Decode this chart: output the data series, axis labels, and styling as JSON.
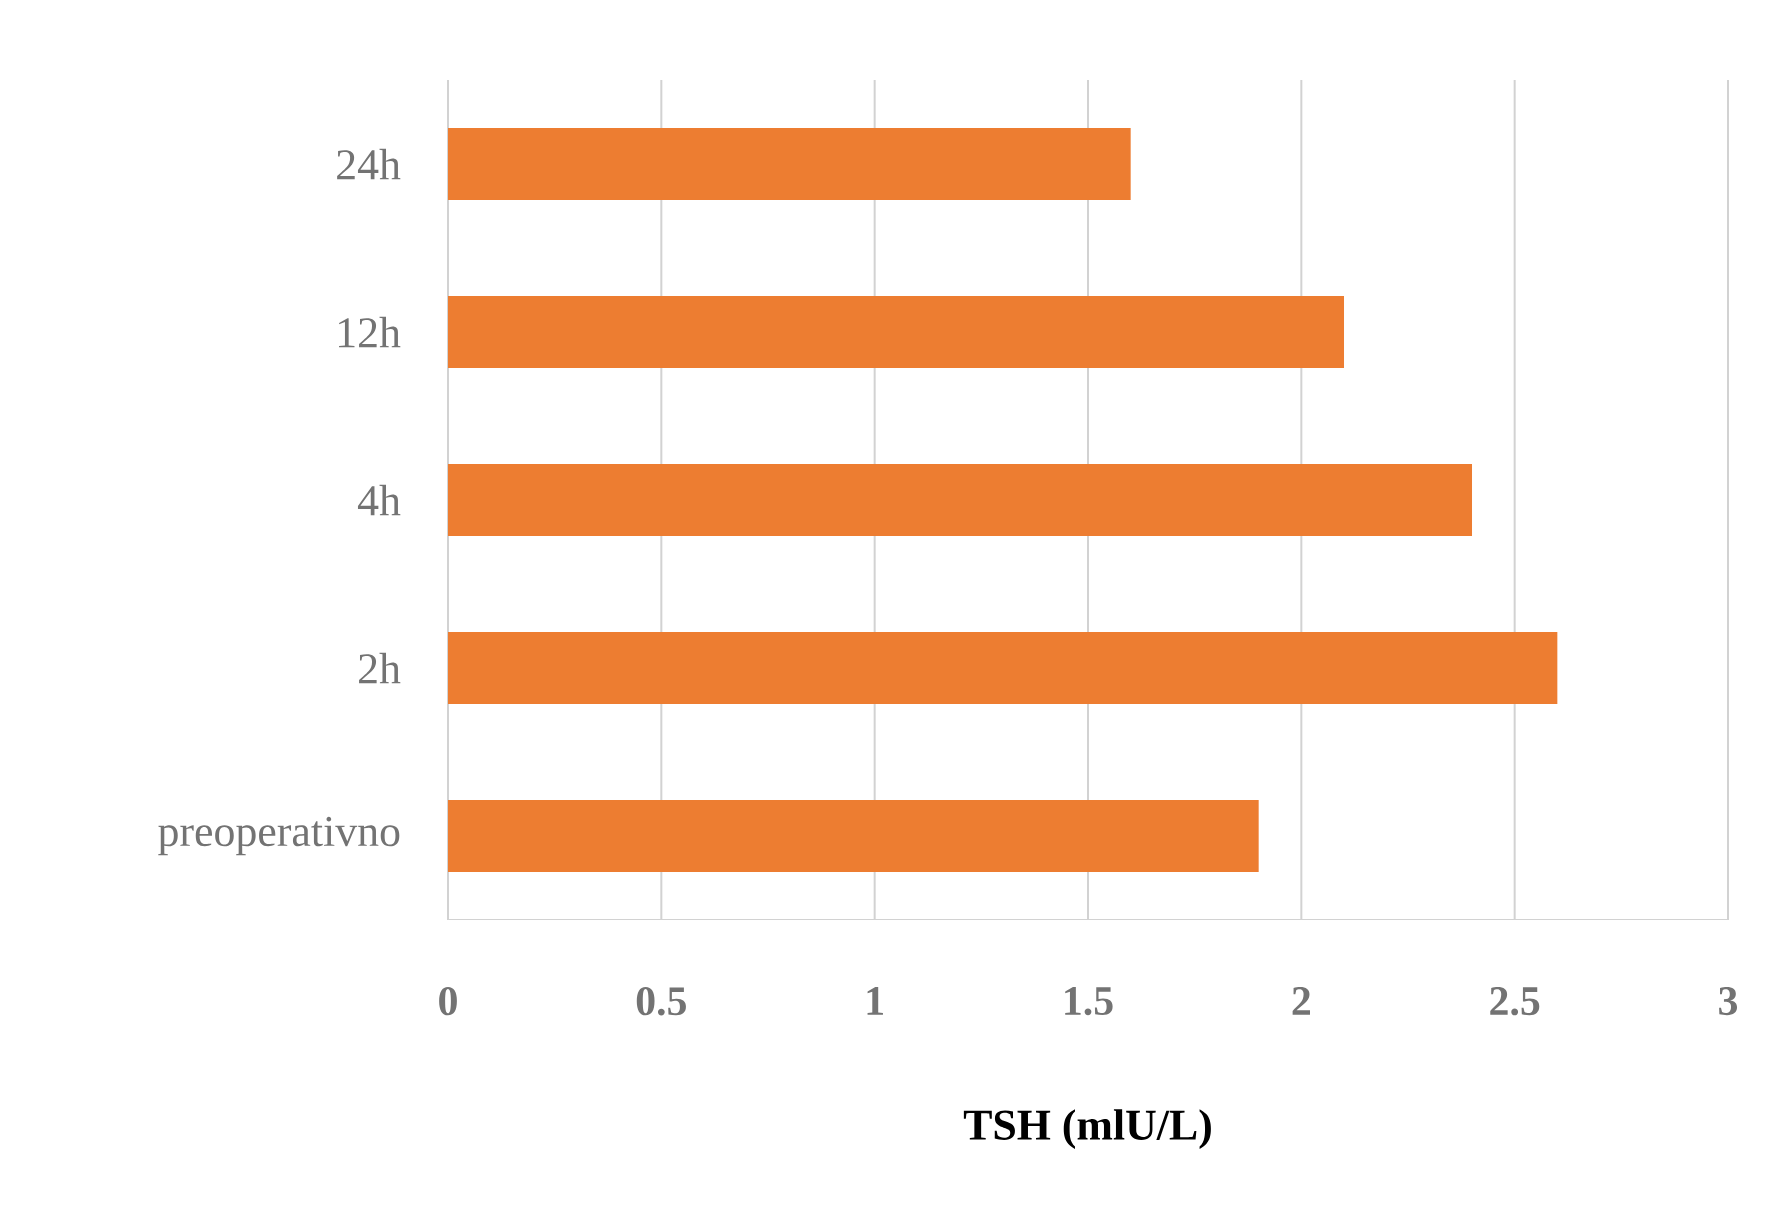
{
  "chart_data": {
    "type": "bar",
    "orientation": "horizontal",
    "xlabel": "TSH (mlU/L)",
    "categories": [
      "24h",
      "12h",
      "4h",
      "2h",
      "preoperativno"
    ],
    "values": [
      1.6,
      2.1,
      2.4,
      2.6,
      1.9
    ],
    "color": "#ed7d31",
    "xlim": [
      0,
      3
    ],
    "xticks": [
      0,
      0.5,
      1,
      1.5,
      2,
      2.5,
      3
    ],
    "grid": "x"
  }
}
